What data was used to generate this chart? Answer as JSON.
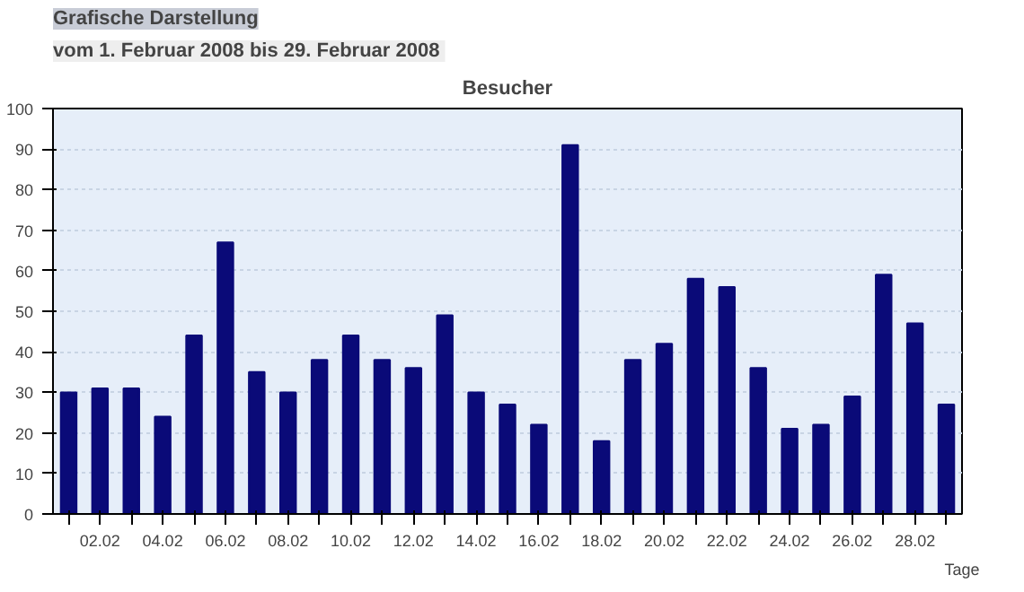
{
  "chart_data": {
    "type": "bar",
    "title": "Besucher",
    "xlabel": "Tage",
    "annotations": [
      "Grafische Darstellung",
      "vom 1. Februar 2008  bis 29. Februar 2008"
    ],
    "categories": [
      null,
      "02.02",
      null,
      "04.02",
      null,
      "06.02",
      null,
      "08.02",
      null,
      "10.02",
      null,
      "12.02",
      null,
      "14.02",
      null,
      "16.02",
      null,
      "18.02",
      null,
      "20.02",
      null,
      "22.02",
      null,
      "24.02",
      null,
      "26.02",
      null,
      "28.02",
      null
    ],
    "values": [
      30,
      31,
      31,
      24,
      44,
      67,
      35,
      30,
      38,
      44,
      38,
      36,
      49,
      30,
      27,
      22,
      91,
      18,
      38,
      42,
      58,
      56,
      36,
      21,
      22,
      29,
      59,
      47,
      27
    ],
    "color": "#0a0a78",
    "ylim": [
      0,
      100
    ],
    "yticks": [
      0,
      10,
      20,
      30,
      40,
      50,
      60,
      70,
      80,
      90,
      100
    ],
    "grid": "y"
  }
}
